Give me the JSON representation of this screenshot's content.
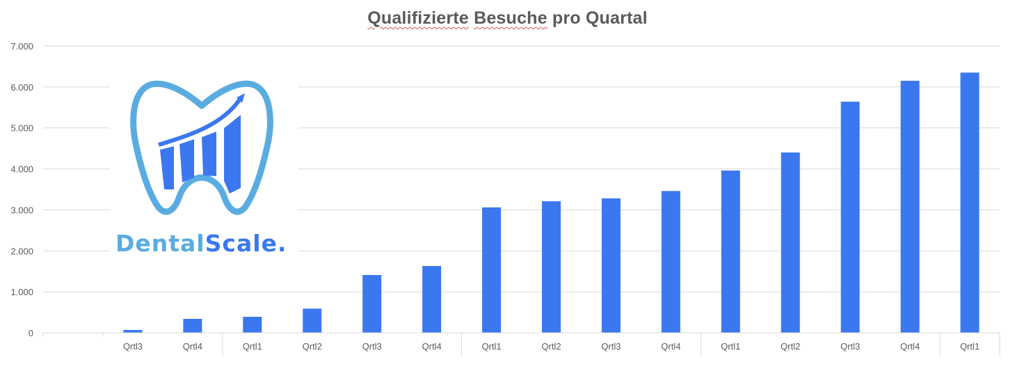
{
  "chart_data": {
    "type": "bar",
    "title": "Qualifizierte Besuche pro Quartal",
    "xlabel": "",
    "ylabel": "",
    "ylim": [
      0,
      7000
    ],
    "yticks": [
      "0",
      "1.000",
      "2.000",
      "3.000",
      "4.000",
      "5.000",
      "6.000",
      "7.000"
    ],
    "grid": true,
    "legend": null,
    "categories": [
      "",
      "Qrtl3",
      "Qrtl4",
      "Qrtl1",
      "Qrtl2",
      "Qrtl3",
      "Qrtl4",
      "Qrtl1",
      "Qrtl2",
      "Qrtl3",
      "Qrtl4",
      "Qrtl1",
      "Qrtl2",
      "Qrtl3",
      "Qrtl4",
      "Qrtl1"
    ],
    "series": [
      {
        "name": "Qualifizierte Besuche",
        "color": "#3b78f0",
        "values": [
          0,
          70,
          340,
          390,
          590,
          1410,
          1630,
          3060,
          3210,
          3280,
          3460,
          3960,
          4400,
          5640,
          6150,
          6350
        ]
      }
    ],
    "group_separators_after_index": [
      2,
      6,
      10,
      14
    ]
  },
  "title": {
    "part1": "Qualifizierte",
    "part2": "Besuche",
    "part3": "pro Quartal"
  },
  "logo": {
    "text_part1": "Dental",
    "text_part2": "Scale.",
    "icon": "tooth-with-growth-chart-icon",
    "color_outline": "#5aace0",
    "color_fill": "#3b78f0"
  },
  "colors": {
    "bar": "#3b78f0",
    "grid": "#d9d9d9",
    "text": "#595959"
  }
}
